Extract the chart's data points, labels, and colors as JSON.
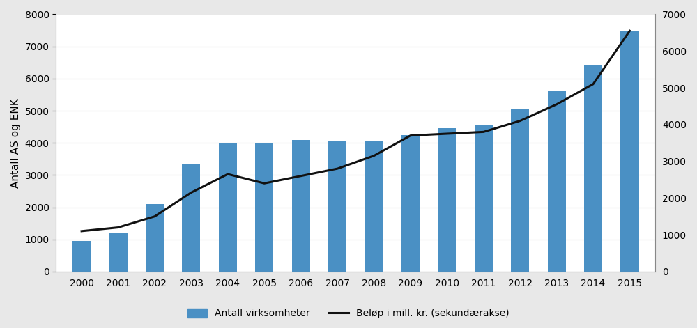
{
  "years": [
    2000,
    2001,
    2002,
    2003,
    2004,
    2005,
    2006,
    2007,
    2008,
    2009,
    2010,
    2011,
    2012,
    2013,
    2014,
    2015
  ],
  "bar_values": [
    950,
    1200,
    2100,
    3350,
    4000,
    4000,
    4100,
    4050,
    4050,
    4250,
    4450,
    4550,
    5050,
    5600,
    6400,
    7500
  ],
  "line_values": [
    1100,
    1200,
    1500,
    2150,
    2650,
    2400,
    2600,
    2800,
    3150,
    3700,
    3750,
    3800,
    4100,
    4550,
    5100,
    6550
  ],
  "bar_color": "#4A90C4",
  "line_color": "#111111",
  "ylabel_left": "Antall AS og ENK",
  "ylim_left": [
    0,
    8000
  ],
  "ylim_right": [
    0,
    6800
  ],
  "yticks_left": [
    0,
    1000,
    2000,
    3000,
    4000,
    5000,
    6000,
    7000,
    8000
  ],
  "yticks_right": [
    0,
    1000,
    2000,
    3000,
    4000,
    5000,
    6000,
    7000
  ],
  "legend_bar_label": "Antall virksomheter",
  "legend_line_label": "Beløp i mill. kr. (sekundærakse)",
  "fig_background": "#e8e8e8",
  "plot_background": "#ffffff",
  "grid_color": "#c0c0c0",
  "tick_fontsize": 10,
  "label_fontsize": 11,
  "bar_width": 0.5
}
